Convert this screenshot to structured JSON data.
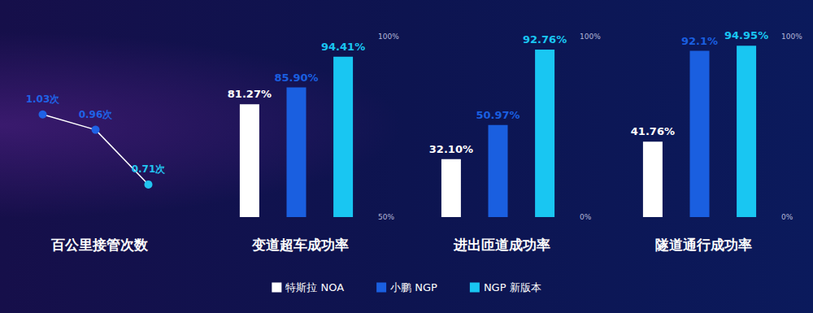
{
  "chart_data": [
    {
      "type": "line",
      "title": "百公里接管次数",
      "categories": [
        null,
        null,
        null
      ],
      "values": [
        1.03,
        0.96,
        0.71
      ],
      "value_labels": [
        "1.03次",
        "0.96次",
        "0.71次"
      ],
      "colors": [
        "#1f62e6",
        "#1f62e6",
        "#22c4f0"
      ],
      "color": "#ffffff",
      "ylim": [
        0.55,
        1.2
      ],
      "grid": false,
      "tick_labels": false,
      "data_labels": true,
      "marker": "circle"
    },
    {
      "type": "bar",
      "title": "变道超车成功率",
      "categories": [
        null
      ],
      "series": [
        {
          "name": "特斯拉 NOA",
          "color": "#ffffff",
          "values": [
            81.27
          ],
          "value_labels": [
            "81.27%"
          ]
        },
        {
          "name": "小鹏 NGP",
          "color": "#1a5fe0",
          "values": [
            85.9
          ],
          "value_labels": [
            "85.90%"
          ]
        },
        {
          "name": "NGP 新版本",
          "color": "#19c6f2",
          "values": [
            94.41
          ],
          "value_labels": [
            "94.41%"
          ]
        }
      ],
      "ylim": [
        50,
        100
      ],
      "yticks": [
        {
          "value": 50,
          "label": "50%"
        },
        {
          "value": 100,
          "label": "100%"
        }
      ],
      "grid": false,
      "tick_labels": "y",
      "data_labels": true,
      "legend": "bottom"
    },
    {
      "type": "bar",
      "title": "进出匝道成功率",
      "categories": [
        null
      ],
      "series": [
        {
          "name": "特斯拉 NOA",
          "color": "#ffffff",
          "values": [
            32.1
          ],
          "value_labels": [
            "32.10%"
          ]
        },
        {
          "name": "小鹏 NGP",
          "color": "#1a5fe0",
          "values": [
            50.97
          ],
          "value_labels": [
            "50.97%"
          ]
        },
        {
          "name": "NGP 新版本",
          "color": "#19c6f2",
          "values": [
            92.76
          ],
          "value_labels": [
            "92.76%"
          ]
        }
      ],
      "ylim": [
        0,
        100
      ],
      "yticks": [
        {
          "value": 0,
          "label": "0%"
        },
        {
          "value": 100,
          "label": "100%"
        }
      ],
      "grid": false,
      "tick_labels": "y",
      "data_labels": true
    },
    {
      "type": "bar",
      "title": "隧道通行成功率",
      "categories": [
        null
      ],
      "series": [
        {
          "name": "特斯拉 NOA",
          "color": "#ffffff",
          "values": [
            41.76
          ],
          "value_labels": [
            "41.76%"
          ]
        },
        {
          "name": "小鹏 NGP",
          "color": "#1a5fe0",
          "values": [
            92.1
          ],
          "value_labels": [
            "92.1%"
          ]
        },
        {
          "name": "NGP 新版本",
          "color": "#19c6f2",
          "values": [
            94.95
          ],
          "value_labels": [
            "94.95%"
          ]
        }
      ],
      "ylim": [
        0,
        100
      ],
      "yticks": [
        {
          "value": 0,
          "label": "0%"
        },
        {
          "value": 100,
          "label": "100%"
        }
      ],
      "grid": false,
      "tick_labels": "y",
      "data_labels": true
    }
  ]
}
